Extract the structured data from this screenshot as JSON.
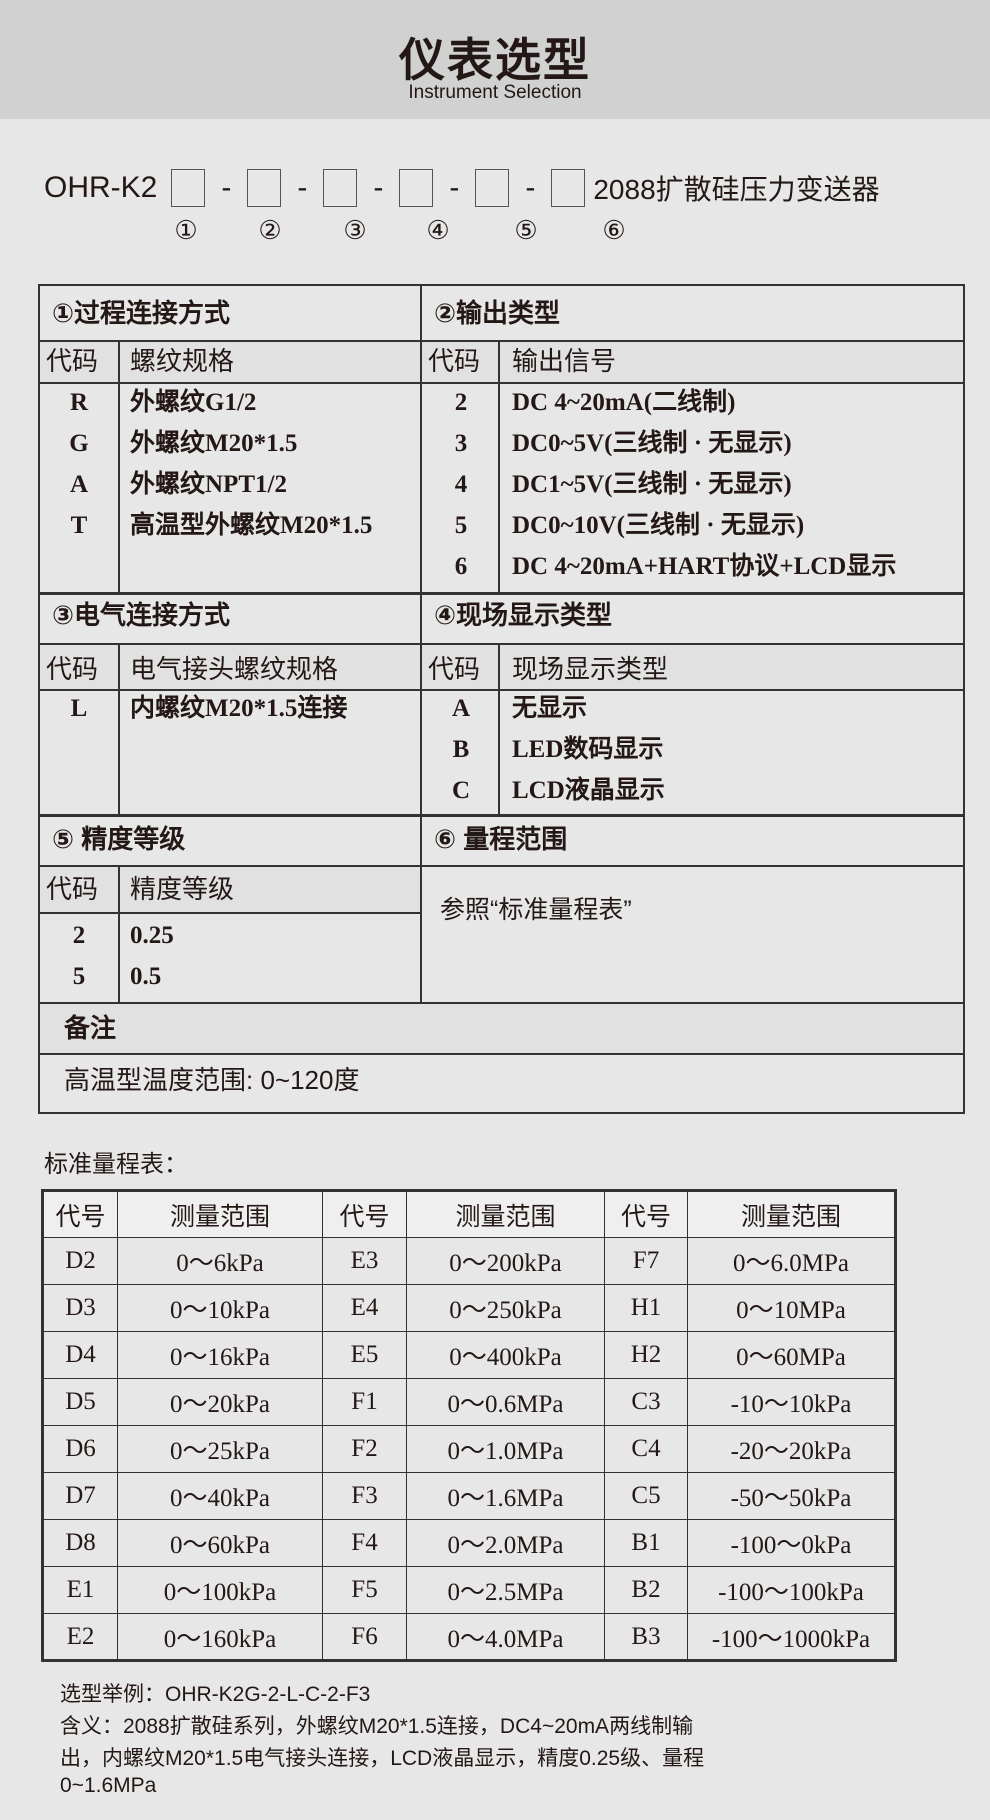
{
  "header": {
    "title": "仪表选型",
    "subtitle": "Instrument Selection"
  },
  "model": {
    "prefix": "OHR-K2",
    "suffix": "2088扩散硅压力变送器",
    "dash": "-",
    "markers": [
      "①",
      "②",
      "③",
      "④",
      "⑤",
      "⑥"
    ]
  },
  "sections": {
    "s1": {
      "title": "①过程连接方式",
      "code_h": "代码",
      "name_h": "螺纹规格",
      "rows": [
        [
          "R",
          "外螺纹G1/2"
        ],
        [
          "G",
          "外螺纹M20*1.5"
        ],
        [
          "A",
          "外螺纹NPT1/2"
        ],
        [
          "T",
          "高温型外螺纹M20*1.5"
        ]
      ]
    },
    "s2": {
      "title": "②输出类型",
      "code_h": "代码",
      "name_h": "输出信号",
      "rows": [
        [
          "2",
          "DC 4~20mA(二线制)"
        ],
        [
          "3",
          "DC0~5V(三线制 · 无显示)"
        ],
        [
          "4",
          "DC1~5V(三线制 · 无显示)"
        ],
        [
          "5",
          "DC0~10V(三线制 · 无显示)"
        ],
        [
          "6",
          "DC 4~20mA+HART协议+LCD显示"
        ]
      ]
    },
    "s3": {
      "title": "③电气连接方式",
      "code_h": "代码",
      "name_h": "电气接头螺纹规格",
      "rows": [
        [
          "L",
          "内螺纹M20*1.5连接"
        ]
      ]
    },
    "s4": {
      "title": "④现场显示类型",
      "code_h": "代码",
      "name_h": "现场显示类型",
      "rows": [
        [
          "A",
          "无显示"
        ],
        [
          "B",
          "LED数码显示"
        ],
        [
          "C",
          "LCD液晶显示"
        ]
      ]
    },
    "s5": {
      "title": "⑤ 精度等级",
      "code_h": "代码",
      "name_h": "精度等级",
      "rows": [
        [
          "2",
          "0.25"
        ],
        [
          "5",
          "0.5"
        ]
      ]
    },
    "s6": {
      "title": "⑥ 量程范围",
      "text": "参照“标准量程表”"
    },
    "note": {
      "title": "备注",
      "text": "高温型温度范围: 0~120度"
    }
  },
  "range": {
    "title": "标准量程表：",
    "headers": [
      "代号",
      "测量范围",
      "代号",
      "测量范围",
      "代号",
      "测量范围"
    ],
    "rows": [
      [
        "D2",
        "0～6kPa",
        "E3",
        "0～200kPa",
        "F7",
        "0～6.0MPa"
      ],
      [
        "D3",
        "0～10kPa",
        "E4",
        "0～250kPa",
        "H1",
        "0～10MPa"
      ],
      [
        "D4",
        "0～16kPa",
        "E5",
        "0～400kPa",
        "H2",
        "0～60MPa"
      ],
      [
        "D5",
        "0～20kPa",
        "F1",
        "0～0.6MPa",
        "C3",
        "-10～10kPa"
      ],
      [
        "D6",
        "0～25kPa",
        "F2",
        "0～1.0MPa",
        "C4",
        "-20～20kPa"
      ],
      [
        "D7",
        "0～40kPa",
        "F3",
        "0～1.6MPa",
        "C5",
        "-50～50kPa"
      ],
      [
        "D8",
        "0～60kPa",
        "F4",
        "0～2.0MPa",
        "B1",
        "-100～0kPa"
      ],
      [
        "E1",
        "0～100kPa",
        "F5",
        "0～2.5MPa",
        "B2",
        "-100～100kPa"
      ],
      [
        "E2",
        "0～160kPa",
        "F6",
        "0～4.0MPa",
        "B3",
        "-100～1000kPa"
      ]
    ]
  },
  "example": {
    "lines": [
      "选型举例：OHR-K2G-2-L-C-2-F3",
      "含义：2088扩散硅系列，外螺纹M20*1.5连接，DC4~20mA两线制输",
      "出，内螺纹M20*1.5电气接头连接，LCD液晶显示，精度0.25级、量程",
      "0~1.6MPa"
    ]
  }
}
